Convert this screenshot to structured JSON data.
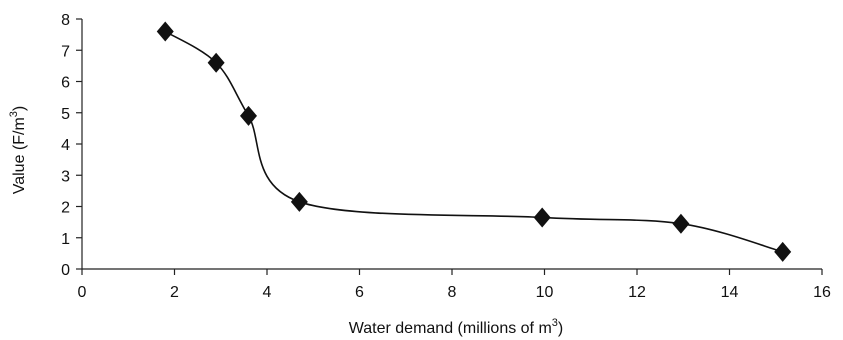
{
  "chart_data": {
    "type": "line",
    "title": "",
    "xlabel": {
      "text": "Water demand (millions of m",
      "sup": "3",
      "suffix": ")"
    },
    "ylabel": {
      "text": "Value (F/m",
      "sup": "3",
      "suffix": ")"
    },
    "xlim": [
      0,
      16
    ],
    "ylim": [
      0,
      8
    ],
    "xticks": [
      0,
      2,
      4,
      6,
      8,
      10,
      12,
      14,
      16
    ],
    "yticks": [
      0,
      1,
      2,
      3,
      4,
      5,
      6,
      7,
      8
    ],
    "grid": false,
    "marker": "diamond",
    "smooth": true,
    "series": [
      {
        "x": [
          1.8,
          2.9,
          3.6,
          4.7,
          9.95,
          12.95,
          15.15
        ],
        "y": [
          7.6,
          6.6,
          4.9,
          2.15,
          1.65,
          1.45,
          0.55
        ]
      }
    ]
  }
}
